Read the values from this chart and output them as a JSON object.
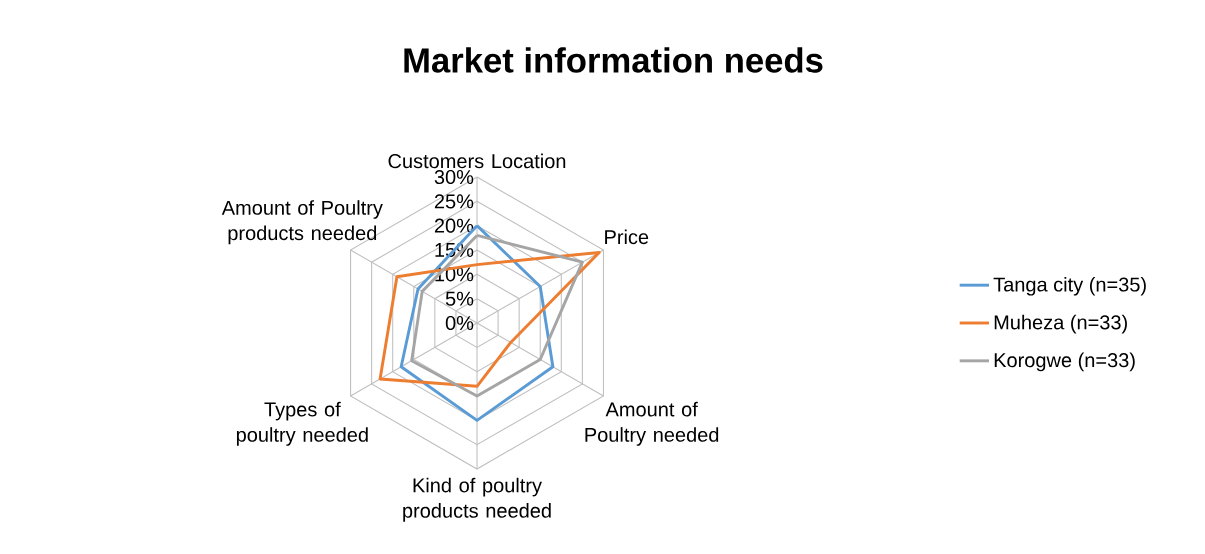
{
  "chart_data": {
    "type": "radar",
    "title": "Market information needs",
    "categories": [
      "Customers Location",
      "Price",
      "Amount of Poultry needed",
      "Kind of poultry products needed",
      "Types of poultry needed",
      "Amount of Poultry products needed"
    ],
    "series": [
      {
        "name": "Tanga city (n=35)",
        "color": "#5b9bd5",
        "values": [
          20,
          15,
          18,
          20,
          18,
          14
        ]
      },
      {
        "name": "Muheza (n=33)",
        "color": "#ed7d31",
        "values": [
          12,
          29,
          8,
          13,
          23,
          19
        ]
      },
      {
        "name": "Korogwe (n=33)",
        "color": "#a5a5a5",
        "values": [
          18,
          25,
          15,
          15,
          15.5,
          13
        ]
      }
    ],
    "ylim": [
      0,
      30
    ],
    "yticks": [
      {
        "value": 0,
        "label": "0%"
      },
      {
        "value": 5,
        "label": "5%"
      },
      {
        "value": 10,
        "label": "10%"
      },
      {
        "value": 15,
        "label": "15%"
      },
      {
        "value": 20,
        "label": "20%"
      },
      {
        "value": 25,
        "label": "25%"
      },
      {
        "value": 30,
        "label": "30%"
      }
    ],
    "grid": true,
    "legend": "right"
  }
}
